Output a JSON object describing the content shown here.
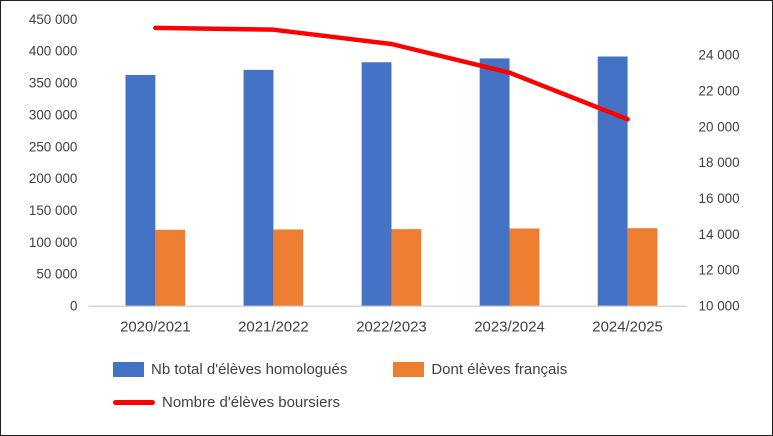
{
  "chart_data": {
    "type": "bar+line",
    "categories": [
      "2020/2021",
      "2021/2022",
      "2022/2023",
      "2023/2024",
      "2024/2025"
    ],
    "series": [
      {
        "id": "homologues",
        "name": "Nb total d'élèves homologués",
        "type": "bar",
        "axis": "left",
        "color": "#4472C4",
        "values": [
          362000,
          370000,
          382000,
          388000,
          391000
        ]
      },
      {
        "id": "francais",
        "name": "Dont élèves français",
        "type": "bar",
        "axis": "left",
        "color": "#ED7D31",
        "values": [
          119000,
          119500,
          120000,
          121000,
          121500
        ]
      },
      {
        "id": "boursiers",
        "name": "Nombre d'élèves boursiers",
        "type": "line",
        "axis": "right",
        "color": "#FF0000",
        "values": [
          25500,
          25400,
          24600,
          23000,
          20400
        ]
      }
    ],
    "left_axis": {
      "min": 0,
      "max": 450000,
      "step": 50000,
      "tick_labels": [
        "450 000",
        "400 000",
        "350 000",
        "300 000",
        "250 000",
        "200 000",
        "150 000",
        "100 000",
        "50 000",
        "0"
      ]
    },
    "right_axis": {
      "min": 10000,
      "max": 26000,
      "step": 2000,
      "tick_labels": [
        "24 000",
        "22 000",
        "20 000",
        "18 000",
        "16 000",
        "14 000",
        "12 000",
        "10 000"
      ]
    },
    "grid": false,
    "legend_position": "bottom-left",
    "text_color": "#404040"
  }
}
